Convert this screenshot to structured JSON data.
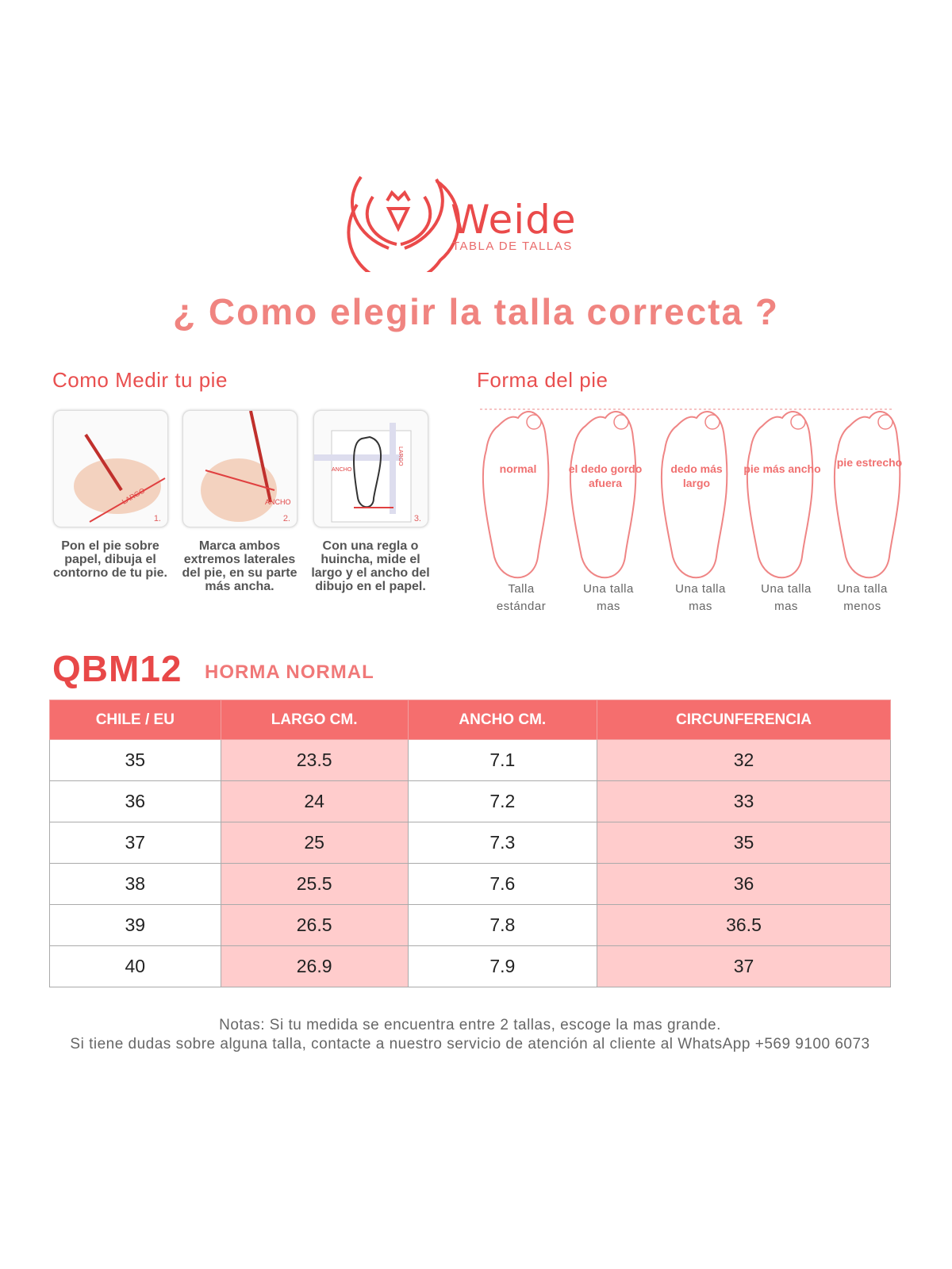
{
  "logo": {
    "brand": "Weide",
    "subtitle": "TABLA DE TALLAS"
  },
  "title": "¿ Como elegir la talla correcta ?",
  "measure": {
    "heading": "Como Medir tu pie",
    "steps": [
      {
        "num": "1.",
        "label": "LARGO",
        "text": "Pon el pie sobre papel, dibuja el contorno de tu pie."
      },
      {
        "num": "2.",
        "label": "ANCHO",
        "text": "Marca ambos extremos laterales del pie, en su parte más ancha."
      },
      {
        "num": "3.",
        "label": "ANCHO",
        "label2": "LARGO",
        "text": "Con una regla o huincha, mide el largo y el ancho del dibujo en el papel."
      }
    ]
  },
  "shape": {
    "heading": "Forma del pie",
    "feet": [
      {
        "label": "normal",
        "caption1": "Talla",
        "caption2": "estándar"
      },
      {
        "label": "el dedo gordo afuera",
        "caption1": "Una talla",
        "caption2": "mas"
      },
      {
        "label": "dedo más largo",
        "caption1": "Una talla",
        "caption2": "mas"
      },
      {
        "label": "pie más ancho",
        "caption1": "Una talla",
        "caption2": "mas"
      },
      {
        "label": "pie estrecho",
        "caption1": "Una talla",
        "caption2": "menos"
      }
    ]
  },
  "model": {
    "code": "QBM12",
    "type": "HORMA NORMAL"
  },
  "table": {
    "headers": [
      "CHILE / EU",
      "LARGO CM.",
      "ANCHO CM.",
      "CIRCUNFERENCIA"
    ],
    "rows": [
      [
        "35",
        "23.5",
        "7.1",
        "32"
      ],
      [
        "36",
        "24",
        "7.2",
        "33"
      ],
      [
        "37",
        "25",
        "7.3",
        "35"
      ],
      [
        "38",
        "25.5",
        "7.6",
        "36"
      ],
      [
        "39",
        "26.5",
        "7.8",
        "36.5"
      ],
      [
        "40",
        "26.9",
        "7.9",
        "37"
      ]
    ]
  },
  "notes": [
    "Notas: Si tu medida se encuentra entre 2 tallas, escoge la mas grande.",
    "Si tiene dudas sobre alguna talla, contacte a nuestro servicio de atención al cliente al WhatsApp +569 9100 6073"
  ],
  "colors": {
    "accent": "#ea4a4a",
    "header": "#f56e6e",
    "cell_pink": "#ffcccc"
  }
}
